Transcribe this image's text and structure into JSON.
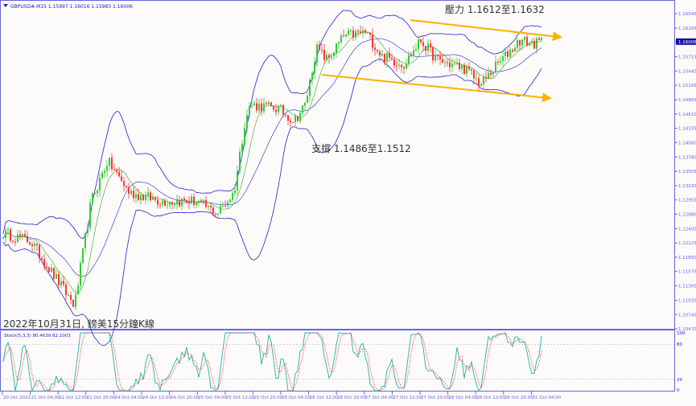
{
  "header": {
    "symbol_info": "GBPUSD#,M15  1.15997 1.16016 1.15983 1.16006"
  },
  "annotations": {
    "resistance": "壓力 1.1612至1.1632",
    "support": "支撐 1.1486至1.1512",
    "caption": "2022年10月31日, 鎊美15分鐘K線"
  },
  "indicator": {
    "label": "Stoch(5,3,3) 80.4630 82.1003",
    "levels": [
      "100",
      "80",
      "20",
      "0"
    ]
  },
  "colors": {
    "bull": "#33cc33",
    "bear": "#ff3333",
    "bands": "#2222cc",
    "ma": "#22aa22",
    "trend": "#ffb000",
    "stoch_main": "#20b2aa",
    "stoch_signal": "#ff3030",
    "axis": "#6666dd",
    "current_price_bg": "#1010a0"
  },
  "chart_data": {
    "type": "candlestick",
    "symbol": "GBPUSD#",
    "timeframe": "M15",
    "current_price": "1.16006",
    "y_ticks": [
      "1.16545",
      "1.16265",
      "1.16006",
      "1.15715",
      "1.15440",
      "1.15165",
      "1.14885",
      "1.14610",
      "1.14335",
      "1.14060",
      "1.13780",
      "1.13505",
      "1.13230",
      "1.12955",
      "1.12680",
      "1.12400",
      "1.12125",
      "1.11850",
      "1.11575",
      "1.11300",
      "1.11020",
      "1.10745",
      "1.10470"
    ],
    "ylim": [
      1.1047,
      1.16545
    ],
    "x_ticks": [
      "20 Oct 2022",
      "21 Oct 04:00",
      "21 Oct 12:00",
      "21 Oct 20:00",
      "24 Oct 04:00",
      "24 Oct 12:00",
      "24 Oct 20:00",
      "25 Oct 04:00",
      "25 Oct 12:00",
      "25 Oct 20:00",
      "26 Oct 04:00",
      "26 Oct 12:00",
      "26 Oct 20:00",
      "27 Oct 04:00",
      "27 Oct 12:00",
      "27 Oct 20:00",
      "28 Oct 04:00",
      "28 Oct 12:00",
      "28 Oct 20:00",
      "31 Oct 04:00"
    ],
    "price_path": [
      [
        0,
        1.1231
      ],
      [
        5,
        1.1216
      ],
      [
        10,
        1.1138
      ],
      [
        13,
        1.1092
      ],
      [
        16,
        1.1293
      ],
      [
        19,
        1.1371
      ],
      [
        23,
        1.1309
      ],
      [
        29,
        1.1293
      ],
      [
        35,
        1.1293
      ],
      [
        39,
        1.127
      ],
      [
        42,
        1.1309
      ],
      [
        44,
        1.1448
      ],
      [
        45,
        1.1479
      ],
      [
        50,
        1.1472
      ],
      [
        53,
        1.1448
      ],
      [
        55,
        1.1479
      ],
      [
        57,
        1.1588
      ],
      [
        59,
        1.1565
      ],
      [
        62,
        1.1611
      ],
      [
        66,
        1.1619
      ],
      [
        69,
        1.1572
      ],
      [
        73,
        1.1557
      ],
      [
        76,
        1.1603
      ],
      [
        79,
        1.1565
      ],
      [
        84,
        1.1549
      ],
      [
        87,
        1.1518
      ],
      [
        90,
        1.1557
      ],
      [
        94,
        1.1603
      ],
      [
        97,
        1.1596
      ],
      [
        98,
        1.1601
      ]
    ],
    "indicators": [
      "Bollinger Bands",
      "Moving Average",
      "Stochastic(5,3,3)"
    ],
    "trendlines": [
      {
        "name": "resistance",
        "from": [
          "26 Oct 20:00",
          1.1629
        ],
        "to": [
          "31 Oct 08:00",
          1.1615
        ]
      },
      {
        "name": "support",
        "from": [
          "26 Oct 04:00",
          1.154
        ],
        "to": [
          "31 Oct 08:00",
          1.1498
        ]
      }
    ],
    "stoch_levels": [
      80,
      20
    ],
    "stoch_ylim": [
      0,
      100
    ]
  }
}
